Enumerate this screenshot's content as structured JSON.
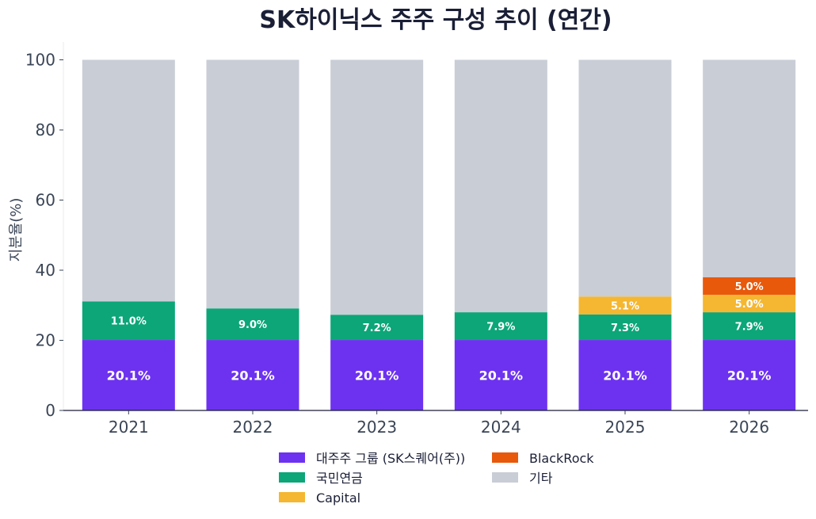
{
  "chart_data": {
    "type": "bar",
    "stacked": true,
    "title": "SK하이닉스 주주 구성 추이 (연간)",
    "xlabel": "",
    "ylabel": "지분율(%)",
    "ylim": [
      0,
      105
    ],
    "yticks": [
      0,
      20,
      40,
      60,
      80,
      100
    ],
    "categories": [
      "2021",
      "2022",
      "2023",
      "2024",
      "2025",
      "2026"
    ],
    "series": [
      {
        "name": "대주주 그룹 (SK스퀘어(주))",
        "color": "#6d32f0",
        "values": [
          20.1,
          20.1,
          20.1,
          20.1,
          20.1,
          20.1
        ],
        "labels": [
          "20.1%",
          "20.1%",
          "20.1%",
          "20.1%",
          "20.1%",
          "20.1%"
        ]
      },
      {
        "name": "국민연금",
        "color": "#0ca678",
        "values": [
          11.0,
          9.0,
          7.2,
          7.9,
          7.3,
          7.9
        ],
        "labels": [
          "11.0%",
          "9.0%",
          "7.2%",
          "7.9%",
          "7.3%",
          "7.9%"
        ]
      },
      {
        "name": "Capital",
        "color": "#f5b731",
        "values": [
          0,
          0,
          0,
          0,
          5.1,
          5.0
        ],
        "labels": [
          "",
          "",
          "",
          "",
          "5.1%",
          "5.0%"
        ]
      },
      {
        "name": "BlackRock",
        "color": "#e8590c",
        "values": [
          0,
          0,
          0,
          0,
          0,
          5.0
        ],
        "labels": [
          "",
          "",
          "",
          "",
          "",
          "5.0%"
        ]
      },
      {
        "name": "기타",
        "color": "#c9cdd6",
        "values": [
          68.9,
          70.9,
          72.7,
          72.0,
          67.5,
          62.0
        ],
        "labels": [
          "",
          "",
          "",
          "",
          "",
          ""
        ]
      }
    ],
    "legend": {
      "placement": "bottom-center",
      "entries": [
        {
          "name": "대주주 그룹 (SK스퀘어(주))",
          "color": "#6d32f0"
        },
        {
          "name": "BlackRock",
          "color": "#e8590c"
        },
        {
          "name": "국민연금",
          "color": "#0ca678"
        },
        {
          "name": "기타",
          "color": "#c9cdd6"
        },
        {
          "name": "Capital",
          "color": "#f5b731"
        }
      ]
    },
    "grid": false
  }
}
